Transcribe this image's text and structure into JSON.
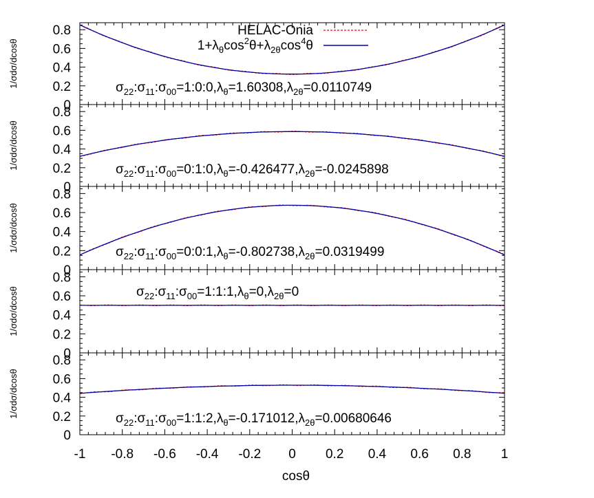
{
  "chart_data": {
    "type": "line",
    "layout": "5 vertically stacked panels sharing x-axis",
    "xlabel": "cosθ",
    "ylabel": "1/σdσ/dcosθ",
    "xlim": [
      -1,
      1
    ],
    "ylim": [
      0,
      0.875
    ],
    "x_ticks": [
      "-1",
      "-0.8",
      "-0.6",
      "-0.4",
      "-0.2",
      "0",
      "0.2",
      "0.4",
      "0.6",
      "0.8",
      "1"
    ],
    "y_ticks": [
      "0",
      "0.2",
      "0.4",
      "0.6",
      "0.8"
    ],
    "grid": false,
    "legend": {
      "position": "top-center (panel 1)",
      "entries": [
        {
          "label": "HELAC-Onia",
          "style": "dashed",
          "color": "#ff0000"
        },
        {
          "label": "1+λθcos²θ+λ2θcos⁴θ",
          "style": "solid",
          "color": "#0000a0"
        }
      ]
    },
    "formula": "y = (1 + λθ x² + λ2θ x⁴) / (2 (1 + λθ/3 + λ2θ/5))",
    "panels": [
      {
        "ratio": "1:0:0",
        "lambda_theta": 1.60308,
        "lambda_2theta": 0.0110749,
        "annotation": "σ22:σ11:σ00=1:0:0,λθ=1.60308,λ2θ=0.0110749",
        "approx_values": {
          "x=-1": 0.85,
          "x=0": 0.325,
          "x=1": 0.85
        }
      },
      {
        "ratio": "0:1:0",
        "lambda_theta": -0.426477,
        "lambda_2theta": -0.0245898,
        "annotation": "σ22:σ11:σ00=0:1:0,λθ=-0.426477,λ2θ=-0.0245898",
        "approx_values": {
          "x=-1": 0.33,
          "x=0": 0.58,
          "x=1": 0.33
        }
      },
      {
        "ratio": "0:0:1",
        "lambda_theta": -0.802738,
        "lambda_2theta": 0.0319499,
        "annotation": "σ22:σ11:σ00=0:0:1,λθ=-0.802738,λ2θ=0.0319499",
        "approx_values": {
          "x=-1": 0.16,
          "x=0": 0.68,
          "x=1": 0.16
        }
      },
      {
        "ratio": "1:1:1",
        "lambda_theta": 0,
        "lambda_2theta": 0,
        "annotation": "σ22:σ11:σ00=1:1:1,λθ=0,λ2θ=0",
        "approx_values": {
          "x=-1": 0.5,
          "x=0": 0.5,
          "x=1": 0.5
        }
      },
      {
        "ratio": "1:1:2",
        "lambda_theta": -0.171012,
        "lambda_2theta": 0.00680646,
        "annotation": "σ22:σ11:σ00=1:1:2,λθ=-0.171012,λ2θ=0.00680646",
        "approx_values": {
          "x=-1": 0.44,
          "x=0": 0.53,
          "x=1": 0.44
        }
      }
    ]
  },
  "labels": {
    "xlabel": "cosθ",
    "ylabel": "1/σdσ/dcosθ",
    "legend_data": "HELAC-Onia",
    "legend_fit": "1+λθcos²θ+λ2θcos⁴θ"
  },
  "colors": {
    "data": "#ff0000",
    "fit": "#0000a0",
    "axis": "#000000"
  }
}
